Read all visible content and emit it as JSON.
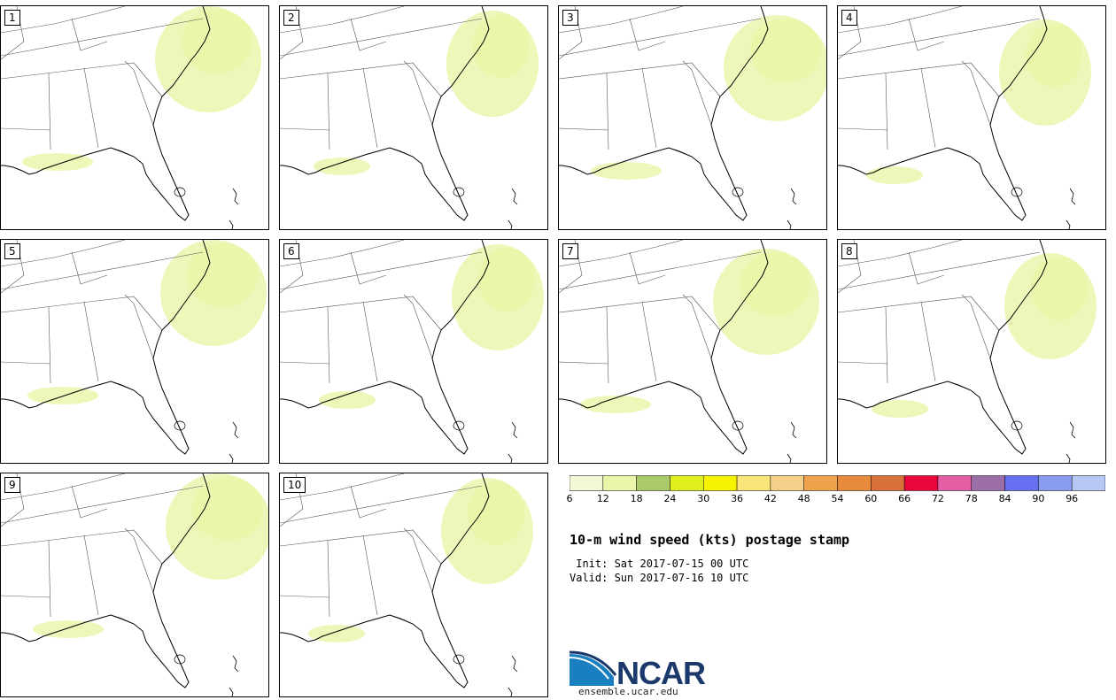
{
  "panels": [
    {
      "label": "1"
    },
    {
      "label": "2"
    },
    {
      "label": "3"
    },
    {
      "label": "4"
    },
    {
      "label": "5"
    },
    {
      "label": "6"
    },
    {
      "label": "7"
    },
    {
      "label": "8"
    },
    {
      "label": "9"
    },
    {
      "label": "10"
    }
  ],
  "colorbar": {
    "ticks": [
      "6",
      "12",
      "18",
      "24",
      "30",
      "36",
      "42",
      "48",
      "54",
      "60",
      "66",
      "72",
      "78",
      "84",
      "90",
      "96"
    ],
    "colors": [
      "#f5f8d6",
      "#e9f5a8",
      "#a9c96a",
      "#dfef1e",
      "#f7f300",
      "#f9e57a",
      "#f4cf8a",
      "#eda24b",
      "#e88a3c",
      "#d9723a",
      "#e8073d",
      "#e45ea6",
      "#9c6ea8",
      "#6670f0",
      "#8a9cf2",
      "#b8c7f4"
    ]
  },
  "title": "10-m wind speed (kts) postage stamp",
  "init_line": " Init: Sat 2017-07-15 00 UTC",
  "valid_line": "Valid: Sun 2017-07-16 10 UTC",
  "logo": {
    "word": "NCAR",
    "url_text": "ensemble.ucar.edu"
  }
}
